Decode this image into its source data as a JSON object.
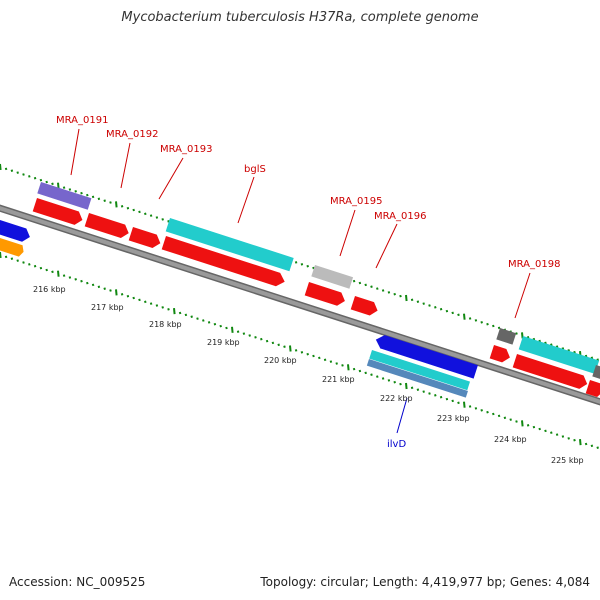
{
  "header": {
    "title": "Mycobacterium tuberculosis H37Ra, complete genome"
  },
  "footer": {
    "accession": "Accession: NC_009525",
    "stats": "Topology: circular; Length: 4,419,977 bp; Genes: 4,084"
  },
  "colors": {
    "cds": "#ee1111",
    "gene_cyan": "#22cccc",
    "gene_blue": "#1111dd",
    "gene_purple": "#7766cc",
    "gene_orange": "#ff9900",
    "gene_gray_light": "#bbbbbb",
    "gene_gray_dark": "#666666",
    "gene_steel": "#5588bb",
    "backbone": "#888888",
    "ruler_ticks": "#118811",
    "label_red": "#cc0000",
    "label_blue": "#0000cc"
  },
  "ruler": {
    "labels": [
      "216 kbp",
      "217 kbp",
      "218 kbp",
      "219 kbp",
      "220 kbp",
      "221 kbp",
      "222 kbp",
      "223 kbp",
      "224 kbp",
      "225 kbp"
    ]
  },
  "gene_labels": [
    {
      "id": "MRA_0191",
      "text": "MRA_0191",
      "color": "#cc0000"
    },
    {
      "id": "MRA_0192",
      "text": "MRA_0192",
      "color": "#cc0000"
    },
    {
      "id": "MRA_0193",
      "text": "MRA_0193",
      "color": "#cc0000"
    },
    {
      "id": "bglS",
      "text": "bglS",
      "color": "#cc0000"
    },
    {
      "id": "MRA_0195",
      "text": "MRA_0195",
      "color": "#cc0000"
    },
    {
      "id": "MRA_0196",
      "text": "MRA_0196",
      "color": "#cc0000"
    },
    {
      "id": "MRA_0198",
      "text": "MRA_0198",
      "color": "#cc0000"
    },
    {
      "id": "ilvD",
      "text": "ilvD",
      "color": "#0000cc"
    }
  ]
}
